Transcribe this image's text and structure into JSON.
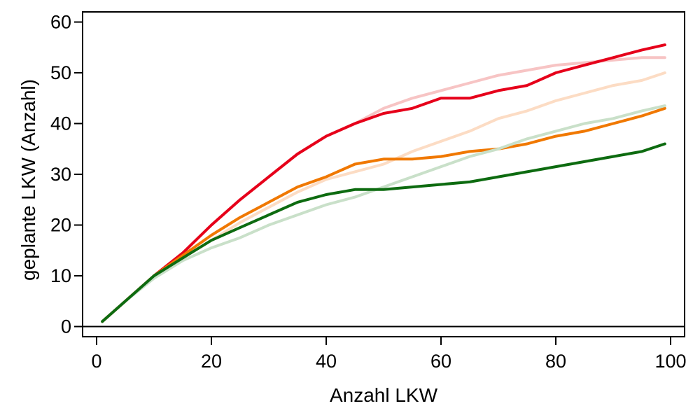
{
  "chart_data": {
    "type": "line",
    "title": "",
    "xlabel": "Anzahl LKW",
    "ylabel": "geplante LKW (Anzahl)",
    "xlim": [
      0,
      100
    ],
    "ylim": [
      -2,
      62
    ],
    "xticks": [
      0,
      20,
      40,
      60,
      80,
      100
    ],
    "yticks": [
      0,
      10,
      20,
      30,
      40,
      50,
      60
    ],
    "grid": false,
    "legend": "none",
    "series": [
      {
        "color": "#f7c4c4",
        "x": [
          1,
          5,
          10,
          15,
          20,
          25,
          30,
          35,
          40,
          45,
          50,
          55,
          60,
          65,
          70,
          75,
          80,
          85,
          90,
          95,
          99
        ],
        "values": [
          1,
          5,
          10,
          14.5,
          20,
          25,
          29.5,
          34,
          37.5,
          40,
          43,
          45,
          46.5,
          48,
          49.5,
          50.5,
          51.5,
          52,
          52.5,
          53,
          53
        ]
      },
      {
        "color": "#e6001a",
        "x": [
          1,
          5,
          10,
          15,
          20,
          25,
          30,
          35,
          40,
          45,
          50,
          55,
          60,
          65,
          70,
          75,
          80,
          85,
          90,
          95,
          99
        ],
        "values": [
          1,
          5,
          10,
          14.5,
          20,
          25,
          29.5,
          34,
          37.5,
          40,
          42,
          43,
          45,
          45,
          46.5,
          47.5,
          50,
          51.5,
          53,
          54.5,
          55.5
        ]
      },
      {
        "color": "#fcdcc4",
        "x": [
          1,
          5,
          10,
          15,
          20,
          25,
          30,
          35,
          40,
          45,
          50,
          55,
          60,
          65,
          70,
          75,
          80,
          85,
          90,
          95,
          99
        ],
        "values": [
          1,
          5,
          10,
          13.5,
          17,
          20.5,
          23.5,
          26.5,
          29,
          30.5,
          32,
          34.5,
          36.5,
          38.5,
          41,
          42.5,
          44.5,
          46,
          47.5,
          48.5,
          50
        ]
      },
      {
        "color": "#f07800",
        "x": [
          1,
          5,
          10,
          15,
          20,
          25,
          30,
          35,
          40,
          45,
          50,
          55,
          60,
          65,
          70,
          75,
          80,
          85,
          90,
          95,
          99
        ],
        "values": [
          1,
          5,
          10,
          14,
          18,
          21.5,
          24.5,
          27.5,
          29.5,
          32,
          33,
          33,
          33.5,
          34.5,
          35,
          36,
          37.5,
          38.5,
          40,
          41.5,
          43
        ]
      },
      {
        "color": "#c9e0c9",
        "x": [
          1,
          5,
          10,
          15,
          20,
          25,
          30,
          35,
          40,
          45,
          50,
          55,
          60,
          65,
          70,
          75,
          80,
          85,
          90,
          95,
          99
        ],
        "values": [
          1,
          5,
          9.5,
          13,
          15.5,
          17.5,
          20,
          22,
          24,
          25.5,
          27.5,
          29.5,
          31.5,
          33.5,
          35,
          37,
          38.5,
          40,
          41,
          42.5,
          43.5
        ]
      },
      {
        "color": "#0d6b10",
        "x": [
          1,
          5,
          10,
          15,
          20,
          25,
          30,
          35,
          40,
          45,
          50,
          55,
          60,
          65,
          70,
          75,
          80,
          85,
          90,
          95,
          99
        ],
        "values": [
          1,
          5,
          10,
          13.5,
          17,
          19.5,
          22,
          24.5,
          26,
          27,
          27,
          27.5,
          28,
          28.5,
          29.5,
          30.5,
          31.5,
          32.5,
          33.5,
          34.5,
          36
        ]
      }
    ]
  }
}
